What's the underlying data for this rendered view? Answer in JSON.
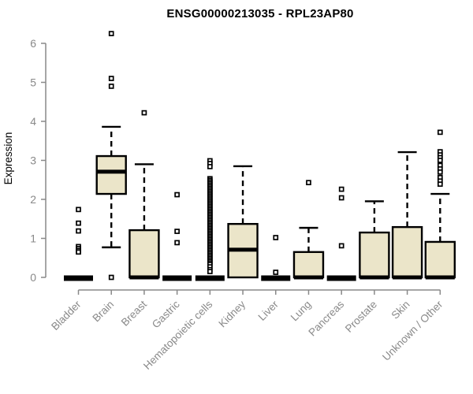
{
  "title": "ENSG00000213035 - RPL23AP80",
  "colors": {
    "background": "#FFFFFF",
    "box_fill": "#EBE5C9",
    "box_stroke": "#000000",
    "median": "#000000",
    "outlier_stroke": "#000000",
    "axis": "#898989",
    "tick_label": "#898989",
    "title": "#000000"
  },
  "chart_data": {
    "type": "boxplot",
    "title": "ENSG00000213035 - RPL23AP80",
    "xlabel": "",
    "ylabel": "Expression",
    "ylim": [
      0,
      6
    ],
    "yticks": [
      0,
      1,
      2,
      3,
      4,
      5,
      6
    ],
    "grid": false,
    "legend": false,
    "categories": [
      "Bladder",
      "Brain",
      "Breast",
      "Gastric",
      "Hematopoietic cells",
      "Kidney",
      "Liver",
      "Lung",
      "Pancreas",
      "Prostate",
      "Skin",
      "Unknown / Other"
    ],
    "series": [
      {
        "name": "Bladder",
        "low": 0,
        "q1": 0,
        "median": 0,
        "q3": 0,
        "high": 0,
        "outliers": [
          1.74,
          1.39,
          1.19,
          0.79,
          0.74,
          0.69,
          0.65
        ]
      },
      {
        "name": "Brain",
        "low": 0.77,
        "q1": 2.14,
        "median": 2.71,
        "q3": 3.11,
        "high": 3.86,
        "outliers": [
          6.25,
          5.1,
          4.9,
          0.0
        ]
      },
      {
        "name": "Breast",
        "low": 0,
        "q1": 0,
        "median": 0,
        "q3": 1.21,
        "high": 2.9,
        "outliers": [
          4.22
        ]
      },
      {
        "name": "Gastric",
        "low": 0,
        "q1": 0,
        "median": 0,
        "q3": 0,
        "high": 0,
        "outliers": [
          2.12,
          1.18,
          0.89
        ]
      },
      {
        "name": "Hematopoietic cells",
        "low": 0,
        "q1": 0,
        "median": 0,
        "q3": 0,
        "high": 0,
        "outliers": [
          2.99,
          2.92,
          2.84,
          2.53,
          2.49,
          2.45,
          2.41,
          2.37,
          2.33,
          2.29,
          2.25,
          2.21,
          2.17,
          2.13,
          2.09,
          2.05,
          2.01,
          1.97,
          1.93,
          1.89,
          1.85,
          1.81,
          1.77,
          1.73,
          1.69,
          1.65,
          1.61,
          1.57,
          1.53,
          1.49,
          1.45,
          1.41,
          1.37,
          1.33,
          1.29,
          1.25,
          1.21,
          1.17,
          1.13,
          1.09,
          1.05,
          1.01,
          0.97,
          0.93,
          0.89,
          0.85,
          0.81,
          0.77,
          0.73,
          0.69,
          0.65,
          0.61,
          0.57,
          0.53,
          0.49,
          0.45,
          0.41,
          0.37,
          0.33,
          0.27,
          0.2,
          0.15
        ]
      },
      {
        "name": "Kidney",
        "low": 0,
        "q1": 0,
        "median": 0.71,
        "q3": 1.37,
        "high": 2.85,
        "outliers": []
      },
      {
        "name": "Liver",
        "low": 0,
        "q1": 0,
        "median": 0,
        "q3": 0,
        "high": 0,
        "outliers": [
          1.02,
          0.13
        ]
      },
      {
        "name": "Lung",
        "low": 0,
        "q1": 0,
        "median": 0,
        "q3": 0.65,
        "high": 1.27,
        "outliers": [
          2.43
        ]
      },
      {
        "name": "Pancreas",
        "low": 0,
        "q1": 0,
        "median": 0,
        "q3": 0,
        "high": 0,
        "outliers": [
          2.26,
          2.04,
          0.81
        ]
      },
      {
        "name": "Prostate",
        "low": 0,
        "q1": 0,
        "median": 0,
        "q3": 1.15,
        "high": 1.95,
        "outliers": []
      },
      {
        "name": "Skin",
        "low": 0,
        "q1": 0,
        "median": 0,
        "q3": 1.29,
        "high": 3.21,
        "outliers": []
      },
      {
        "name": "Unknown / Other",
        "low": 0,
        "q1": 0,
        "median": 0,
        "q3": 0.91,
        "high": 2.14,
        "outliers": [
          3.72,
          3.22,
          3.14,
          3.07,
          3.0,
          2.87,
          2.78,
          2.7,
          2.56,
          2.47,
          2.39
        ]
      }
    ]
  }
}
